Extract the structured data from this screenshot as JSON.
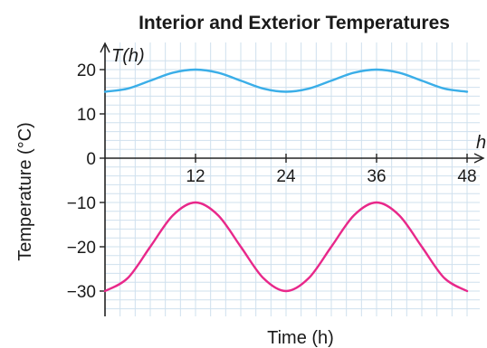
{
  "chart_data": {
    "type": "line",
    "title": "Interior and Exterior Temperatures",
    "xlabel": "Time (h)",
    "ylabel": "Temperature (°C)",
    "x_axis_name": "h",
    "y_axis_name": "T(h)",
    "xlim": [
      0,
      48
    ],
    "ylim": [
      -32,
      22
    ],
    "grid": true,
    "x_ticks": [
      {
        "value": 12,
        "label": "12"
      },
      {
        "value": 24,
        "label": "24"
      },
      {
        "value": 36,
        "label": "36"
      },
      {
        "value": 48,
        "label": "48"
      }
    ],
    "y_ticks": [
      {
        "value": 20,
        "label": "20"
      },
      {
        "value": 10,
        "label": "10"
      },
      {
        "value": 0,
        "label": "0"
      },
      {
        "value": -10,
        "label": "−10"
      },
      {
        "value": -20,
        "label": "−20"
      },
      {
        "value": -30,
        "label": "−30"
      }
    ],
    "series": [
      {
        "color": "#3aaee8",
        "x": [
          0,
          3,
          6,
          9,
          12,
          15,
          18,
          21,
          24,
          27,
          30,
          33,
          36,
          39,
          42,
          45,
          48
        ],
        "y": [
          15,
          15.7,
          17.5,
          19.3,
          20,
          19.3,
          17.5,
          15.7,
          15,
          15.7,
          17.5,
          19.3,
          20,
          19.3,
          17.5,
          15.7,
          15
        ]
      },
      {
        "color": "#e8288a",
        "x": [
          0,
          3,
          6,
          9,
          12,
          15,
          18,
          21,
          24,
          27,
          30,
          33,
          36,
          39,
          42,
          45,
          48
        ],
        "y": [
          -30,
          -27.1,
          -20,
          -12.9,
          -10,
          -12.9,
          -20,
          -27.1,
          -30,
          -27.1,
          -20,
          -12.9,
          -10,
          -12.9,
          -20,
          -27.1,
          -30
        ]
      }
    ]
  }
}
